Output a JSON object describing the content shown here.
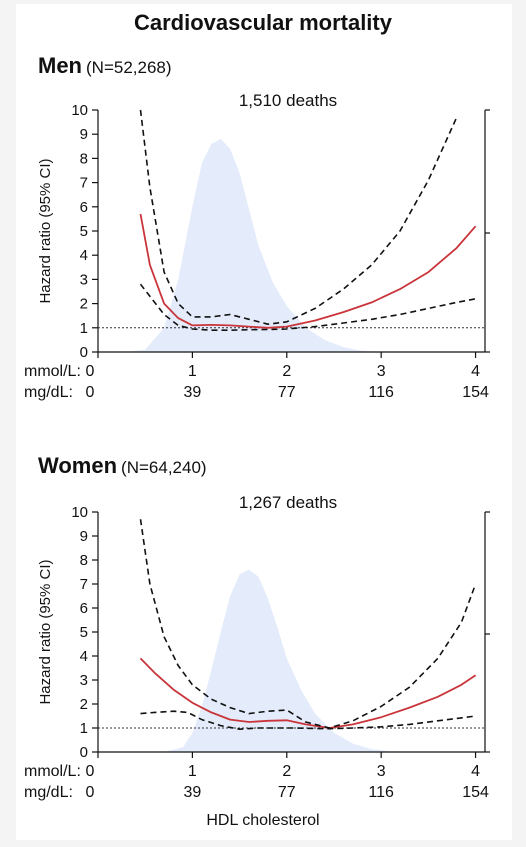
{
  "main_title": "Cardiovascular mortality",
  "x_axis_label": "HDL cholesterol",
  "colors": {
    "density_fill": "#e4ecfb",
    "estimate_line": "#c9353a",
    "ci_line": "#111111",
    "reference_line": "#333333"
  },
  "chart_data": [
    {
      "type": "line",
      "panel": "Men",
      "title": "Men",
      "subtitle": "(N=52,268)",
      "annotation": "1,510 deaths",
      "ylabel": "Hazard ratio (95% CI)",
      "ylim": [
        0,
        10
      ],
      "yticks": [
        0,
        1,
        2,
        3,
        4,
        5,
        6,
        7,
        8,
        9,
        10
      ],
      "xlim": [
        0,
        4.1
      ],
      "x_unit_rows": [
        {
          "label": "mmol/L:",
          "ticks": [
            "0",
            "1",
            "2",
            "3",
            "4"
          ]
        },
        {
          "label": "mg/dL:",
          "ticks": [
            "0",
            "39",
            "77",
            "116",
            "154"
          ]
        }
      ],
      "xticks": [
        0,
        1,
        2,
        3,
        4
      ],
      "reference_hr": 1,
      "density_peak_hr": 8.8,
      "density": {
        "x": [
          0.3,
          0.5,
          0.7,
          0.85,
          1.0,
          1.1,
          1.2,
          1.3,
          1.4,
          1.5,
          1.6,
          1.7,
          1.85,
          2.0,
          2.2,
          2.4,
          2.6,
          2.8,
          3.0
        ],
        "y": [
          0,
          0.1,
          1.0,
          3.0,
          6.0,
          7.8,
          8.6,
          8.8,
          8.4,
          7.4,
          5.9,
          4.4,
          2.9,
          1.9,
          1.0,
          0.5,
          0.2,
          0.05,
          0
        ]
      },
      "series": [
        {
          "role": "estimate",
          "x": [
            0.45,
            0.55,
            0.7,
            0.85,
            1.0,
            1.2,
            1.4,
            1.6,
            1.8,
            2.0,
            2.3,
            2.6,
            2.9,
            3.2,
            3.5,
            3.8,
            4.0
          ],
          "y": [
            5.7,
            3.6,
            2.0,
            1.4,
            1.1,
            1.12,
            1.1,
            1.05,
            1.0,
            1.05,
            1.3,
            1.65,
            2.05,
            2.6,
            3.3,
            4.3,
            5.2
          ]
        },
        {
          "role": "upper-ci",
          "x": [
            0.45,
            0.55,
            0.7,
            0.85,
            1.0,
            1.2,
            1.4,
            1.6,
            1.8,
            2.0,
            2.3,
            2.6,
            2.9,
            3.2,
            3.5,
            3.8
          ],
          "y": [
            10.0,
            6.8,
            3.3,
            2.0,
            1.45,
            1.45,
            1.55,
            1.35,
            1.15,
            1.25,
            1.8,
            2.6,
            3.6,
            5.0,
            7.1,
            9.7
          ]
        },
        {
          "role": "lower-ci",
          "x": [
            0.45,
            0.55,
            0.7,
            0.85,
            1.0,
            1.2,
            1.4,
            1.6,
            1.8,
            2.0,
            2.3,
            2.6,
            2.9,
            3.2,
            3.5,
            3.8,
            4.0
          ],
          "y": [
            2.8,
            2.3,
            1.55,
            1.1,
            0.95,
            0.9,
            0.9,
            0.92,
            0.93,
            0.95,
            1.05,
            1.2,
            1.35,
            1.55,
            1.8,
            2.05,
            2.2
          ]
        }
      ]
    },
    {
      "type": "line",
      "panel": "Women",
      "title": "Women",
      "subtitle": "(N=64,240)",
      "annotation": "1,267 deaths",
      "ylabel": "Hazard ratio (95% CI)",
      "ylim": [
        0,
        10
      ],
      "yticks": [
        0,
        1,
        2,
        3,
        4,
        5,
        6,
        7,
        8,
        9,
        10
      ],
      "xlim": [
        0,
        4.1
      ],
      "x_unit_rows": [
        {
          "label": "mmol/L:",
          "ticks": [
            "0",
            "1",
            "2",
            "3",
            "4"
          ]
        },
        {
          "label": "mg/dL:",
          "ticks": [
            "0",
            "39",
            "77",
            "116",
            "154"
          ]
        }
      ],
      "xticks": [
        0,
        1,
        2,
        3,
        4
      ],
      "reference_hr": 1,
      "density_peak_hr": 7.6,
      "density": {
        "x": [
          0.7,
          0.9,
          1.0,
          1.1,
          1.2,
          1.3,
          1.4,
          1.5,
          1.6,
          1.7,
          1.8,
          1.9,
          2.0,
          2.15,
          2.3,
          2.5,
          2.7,
          2.9,
          3.1,
          3.3
        ],
        "y": [
          0,
          0.2,
          0.8,
          1.9,
          3.4,
          5.0,
          6.5,
          7.4,
          7.6,
          7.3,
          6.4,
          5.2,
          3.9,
          2.6,
          1.6,
          0.8,
          0.35,
          0.12,
          0.03,
          0
        ]
      },
      "series": [
        {
          "role": "estimate",
          "x": [
            0.45,
            0.6,
            0.8,
            1.0,
            1.2,
            1.4,
            1.6,
            1.8,
            2.0,
            2.2,
            2.45,
            2.7,
            3.0,
            3.3,
            3.6,
            3.85,
            4.0
          ],
          "y": [
            3.9,
            3.3,
            2.6,
            2.05,
            1.65,
            1.35,
            1.25,
            1.3,
            1.32,
            1.15,
            1.0,
            1.15,
            1.45,
            1.85,
            2.3,
            2.8,
            3.2
          ]
        },
        {
          "role": "upper-ci",
          "x": [
            0.45,
            0.55,
            0.7,
            0.85,
            1.0,
            1.2,
            1.4,
            1.6,
            1.8,
            2.0,
            2.2,
            2.45,
            2.7,
            3.0,
            3.3,
            3.6,
            3.85,
            4.0
          ],
          "y": [
            9.7,
            7.0,
            4.8,
            3.6,
            2.8,
            2.2,
            1.85,
            1.6,
            1.7,
            1.75,
            1.25,
            1.0,
            1.3,
            1.9,
            2.7,
            3.9,
            5.4,
            7.0
          ]
        },
        {
          "role": "lower-ci",
          "x": [
            0.45,
            0.6,
            0.8,
            0.95,
            1.1,
            1.3,
            1.5,
            1.7,
            1.9,
            2.1,
            2.3,
            2.45,
            2.7,
            3.0,
            3.3,
            3.6,
            3.85,
            4.0
          ],
          "y": [
            1.6,
            1.65,
            1.7,
            1.65,
            1.35,
            1.1,
            0.95,
            1.0,
            1.0,
            1.0,
            0.98,
            0.97,
            1.0,
            1.05,
            1.15,
            1.3,
            1.42,
            1.5
          ]
        }
      ]
    }
  ]
}
